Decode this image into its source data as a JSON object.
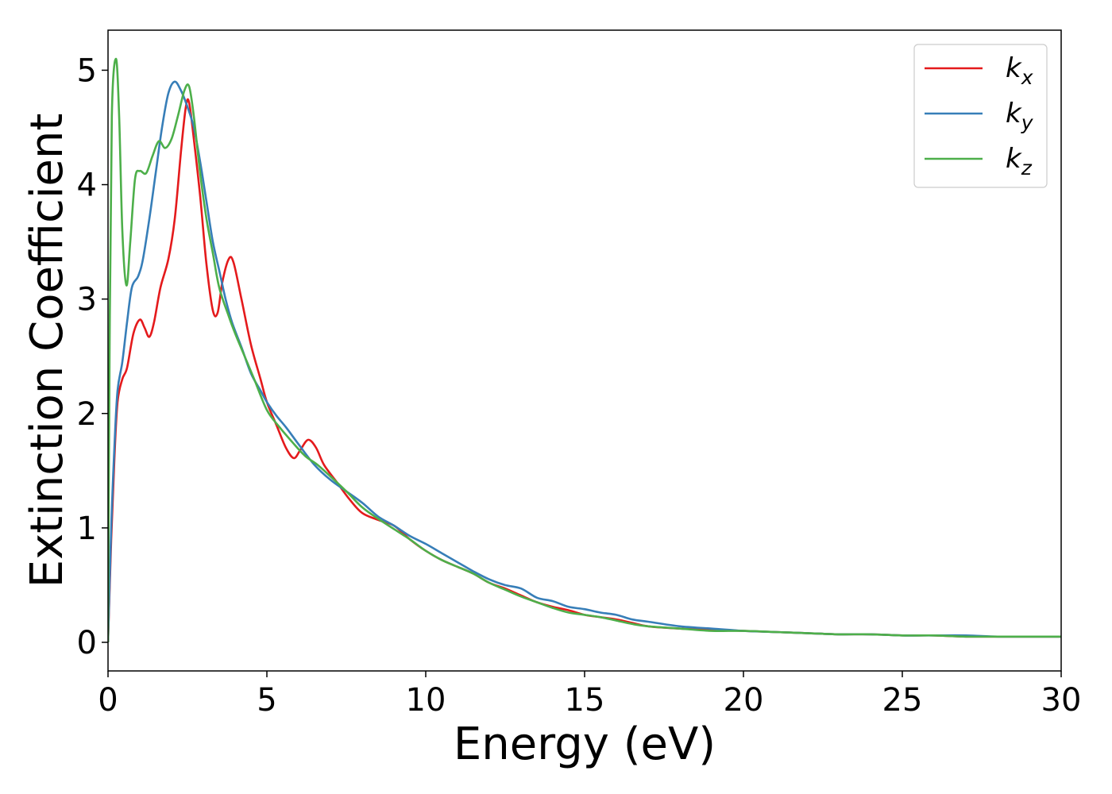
{
  "chart_data": {
    "type": "line",
    "xlabel": "Energy (eV)",
    "ylabel": "Extinction Coefficient",
    "xlim": [
      0,
      30
    ],
    "ylim": [
      -0.25,
      5.35
    ],
    "xticks": [
      0,
      5,
      10,
      15,
      20,
      25,
      30
    ],
    "yticks": [
      0,
      1,
      2,
      3,
      4,
      5
    ],
    "grid": false,
    "legend_position": "top-right",
    "series": [
      {
        "name": "k",
        "subscript": "x",
        "color": "#e41a1c",
        "points": [
          [
            0,
            0
          ],
          [
            0.1,
            0.9
          ],
          [
            0.2,
            1.6
          ],
          [
            0.3,
            2.1
          ],
          [
            0.45,
            2.3
          ],
          [
            0.6,
            2.4
          ],
          [
            0.8,
            2.7
          ],
          [
            1.0,
            2.82
          ],
          [
            1.15,
            2.75
          ],
          [
            1.3,
            2.67
          ],
          [
            1.45,
            2.8
          ],
          [
            1.65,
            3.1
          ],
          [
            1.9,
            3.35
          ],
          [
            2.1,
            3.7
          ],
          [
            2.3,
            4.3
          ],
          [
            2.45,
            4.68
          ],
          [
            2.55,
            4.72
          ],
          [
            2.7,
            4.4
          ],
          [
            2.9,
            3.9
          ],
          [
            3.1,
            3.3
          ],
          [
            3.3,
            2.9
          ],
          [
            3.45,
            2.88
          ],
          [
            3.6,
            3.15
          ],
          [
            3.8,
            3.35
          ],
          [
            3.95,
            3.32
          ],
          [
            4.2,
            3.0
          ],
          [
            4.5,
            2.6
          ],
          [
            4.8,
            2.3
          ],
          [
            5.0,
            2.1
          ],
          [
            5.3,
            1.9
          ],
          [
            5.6,
            1.7
          ],
          [
            5.85,
            1.61
          ],
          [
            6.05,
            1.68
          ],
          [
            6.3,
            1.77
          ],
          [
            6.55,
            1.7
          ],
          [
            6.8,
            1.55
          ],
          [
            7.2,
            1.4
          ],
          [
            7.6,
            1.25
          ],
          [
            8.0,
            1.13
          ],
          [
            8.5,
            1.07
          ],
          [
            9.0,
            1.02
          ],
          [
            9.5,
            0.9
          ],
          [
            10.0,
            0.8
          ],
          [
            10.5,
            0.72
          ],
          [
            11.0,
            0.66
          ],
          [
            11.5,
            0.6
          ],
          [
            12.0,
            0.52
          ],
          [
            12.5,
            0.47
          ],
          [
            13.0,
            0.41
          ],
          [
            13.5,
            0.35
          ],
          [
            14.0,
            0.31
          ],
          [
            14.5,
            0.28
          ],
          [
            15.0,
            0.24
          ],
          [
            15.5,
            0.22
          ],
          [
            16.0,
            0.2
          ],
          [
            16.5,
            0.17
          ],
          [
            17.0,
            0.14
          ],
          [
            18.0,
            0.12
          ],
          [
            19.0,
            0.11
          ],
          [
            20.0,
            0.1
          ],
          [
            21.0,
            0.09
          ],
          [
            22.0,
            0.08
          ],
          [
            23.0,
            0.07
          ],
          [
            24.0,
            0.07
          ],
          [
            25.0,
            0.06
          ],
          [
            26.0,
            0.06
          ],
          [
            27.0,
            0.05
          ],
          [
            28.0,
            0.05
          ],
          [
            29.0,
            0.05
          ],
          [
            30.0,
            0.05
          ]
        ]
      },
      {
        "name": "k",
        "subscript": "y",
        "color": "#377eb8",
        "points": [
          [
            0,
            0
          ],
          [
            0.1,
            1.0
          ],
          [
            0.2,
            1.7
          ],
          [
            0.3,
            2.2
          ],
          [
            0.45,
            2.45
          ],
          [
            0.6,
            2.8
          ],
          [
            0.75,
            3.1
          ],
          [
            0.95,
            3.2
          ],
          [
            1.1,
            3.35
          ],
          [
            1.3,
            3.7
          ],
          [
            1.5,
            4.1
          ],
          [
            1.7,
            4.5
          ],
          [
            1.9,
            4.8
          ],
          [
            2.1,
            4.9
          ],
          [
            2.3,
            4.82
          ],
          [
            2.5,
            4.68
          ],
          [
            2.7,
            4.5
          ],
          [
            2.9,
            4.2
          ],
          [
            3.1,
            3.85
          ],
          [
            3.3,
            3.5
          ],
          [
            3.5,
            3.25
          ],
          [
            3.7,
            3.0
          ],
          [
            3.9,
            2.8
          ],
          [
            4.2,
            2.58
          ],
          [
            4.5,
            2.35
          ],
          [
            4.8,
            2.2
          ],
          [
            5.0,
            2.1
          ],
          [
            5.3,
            1.98
          ],
          [
            5.6,
            1.88
          ],
          [
            6.0,
            1.73
          ],
          [
            6.5,
            1.55
          ],
          [
            7.0,
            1.42
          ],
          [
            7.5,
            1.32
          ],
          [
            8.0,
            1.22
          ],
          [
            8.5,
            1.1
          ],
          [
            9.0,
            1.02
          ],
          [
            9.5,
            0.93
          ],
          [
            10.0,
            0.86
          ],
          [
            10.5,
            0.78
          ],
          [
            11.0,
            0.7
          ],
          [
            11.5,
            0.62
          ],
          [
            12.0,
            0.55
          ],
          [
            12.5,
            0.5
          ],
          [
            13.0,
            0.47
          ],
          [
            13.5,
            0.39
          ],
          [
            14.0,
            0.36
          ],
          [
            14.5,
            0.31
          ],
          [
            15.0,
            0.29
          ],
          [
            15.5,
            0.26
          ],
          [
            16.0,
            0.24
          ],
          [
            16.5,
            0.2
          ],
          [
            17.0,
            0.18
          ],
          [
            18.0,
            0.14
          ],
          [
            19.0,
            0.12
          ],
          [
            20.0,
            0.1
          ],
          [
            21.0,
            0.09
          ],
          [
            22.0,
            0.08
          ],
          [
            23.0,
            0.07
          ],
          [
            24.0,
            0.07
          ],
          [
            25.0,
            0.06
          ],
          [
            26.0,
            0.06
          ],
          [
            27.0,
            0.06
          ],
          [
            28.0,
            0.05
          ],
          [
            29.0,
            0.05
          ],
          [
            30.0,
            0.05
          ]
        ]
      },
      {
        "name": "k",
        "subscript": "z",
        "color": "#4daf4a",
        "points": [
          [
            0,
            0
          ],
          [
            0.05,
            2.6
          ],
          [
            0.12,
            4.6
          ],
          [
            0.25,
            5.1
          ],
          [
            0.35,
            4.6
          ],
          [
            0.45,
            3.6
          ],
          [
            0.58,
            3.12
          ],
          [
            0.7,
            3.5
          ],
          [
            0.85,
            4.05
          ],
          [
            1.0,
            4.12
          ],
          [
            1.2,
            4.1
          ],
          [
            1.4,
            4.25
          ],
          [
            1.6,
            4.38
          ],
          [
            1.8,
            4.32
          ],
          [
            2.0,
            4.4
          ],
          [
            2.2,
            4.6
          ],
          [
            2.4,
            4.82
          ],
          [
            2.55,
            4.86
          ],
          [
            2.7,
            4.6
          ],
          [
            2.9,
            4.1
          ],
          [
            3.1,
            3.7
          ],
          [
            3.3,
            3.4
          ],
          [
            3.5,
            3.1
          ],
          [
            3.8,
            2.85
          ],
          [
            4.0,
            2.7
          ],
          [
            4.3,
            2.5
          ],
          [
            4.6,
            2.3
          ],
          [
            5.0,
            2.03
          ],
          [
            5.4,
            1.88
          ],
          [
            5.8,
            1.75
          ],
          [
            6.2,
            1.63
          ],
          [
            6.6,
            1.55
          ],
          [
            7.0,
            1.45
          ],
          [
            7.5,
            1.32
          ],
          [
            8.0,
            1.18
          ],
          [
            8.5,
            1.08
          ],
          [
            9.0,
            0.99
          ],
          [
            9.5,
            0.9
          ],
          [
            10.0,
            0.8
          ],
          [
            10.5,
            0.72
          ],
          [
            11.0,
            0.66
          ],
          [
            11.5,
            0.6
          ],
          [
            12.0,
            0.52
          ],
          [
            12.5,
            0.46
          ],
          [
            13.0,
            0.4
          ],
          [
            13.5,
            0.35
          ],
          [
            14.0,
            0.3
          ],
          [
            14.5,
            0.26
          ],
          [
            15.0,
            0.24
          ],
          [
            15.5,
            0.22
          ],
          [
            16.0,
            0.19
          ],
          [
            16.5,
            0.16
          ],
          [
            17.0,
            0.14
          ],
          [
            18.0,
            0.12
          ],
          [
            19.0,
            0.1
          ],
          [
            20.0,
            0.1
          ],
          [
            21.0,
            0.09
          ],
          [
            22.0,
            0.08
          ],
          [
            23.0,
            0.07
          ],
          [
            24.0,
            0.07
          ],
          [
            25.0,
            0.06
          ],
          [
            26.0,
            0.06
          ],
          [
            27.0,
            0.05
          ],
          [
            28.0,
            0.05
          ],
          [
            29.0,
            0.05
          ],
          [
            30.0,
            0.05
          ]
        ]
      }
    ]
  }
}
